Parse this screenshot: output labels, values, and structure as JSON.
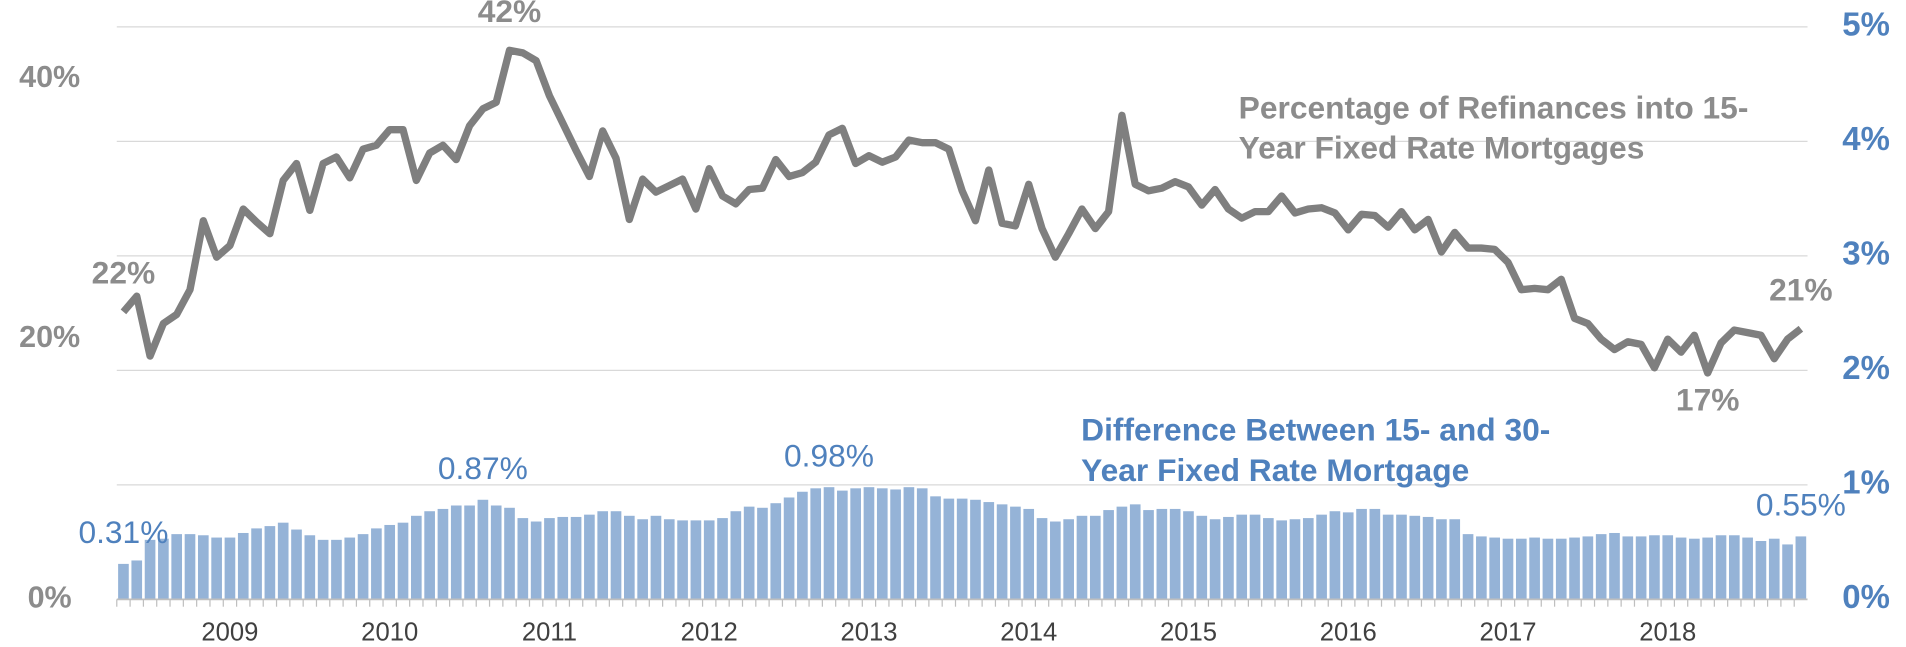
{
  "chart_data": {
    "type": "combo",
    "categories": [
      null,
      null,
      null,
      null,
      null,
      null,
      null,
      null,
      "2009",
      null,
      null,
      null,
      null,
      null,
      null,
      null,
      null,
      null,
      null,
      null,
      "2010",
      null,
      null,
      null,
      null,
      null,
      null,
      null,
      null,
      null,
      null,
      null,
      "2011",
      null,
      null,
      null,
      null,
      null,
      null,
      null,
      null,
      null,
      null,
      null,
      "2012",
      null,
      null,
      null,
      null,
      null,
      null,
      null,
      null,
      null,
      null,
      null,
      "2013",
      null,
      null,
      null,
      null,
      null,
      null,
      null,
      null,
      null,
      null,
      null,
      "2014",
      null,
      null,
      null,
      null,
      null,
      null,
      null,
      null,
      null,
      null,
      null,
      "2015",
      null,
      null,
      null,
      null,
      null,
      null,
      null,
      null,
      null,
      null,
      null,
      "2016",
      null,
      null,
      null,
      null,
      null,
      null,
      null,
      null,
      null,
      null,
      null,
      "2017",
      null,
      null,
      null,
      null,
      null,
      null,
      null,
      null,
      null,
      null,
      null,
      "2018",
      null,
      null,
      null,
      null,
      null,
      null,
      null,
      null,
      null,
      null
    ],
    "ylim": [
      0,
      44
    ],
    "yticks": [
      {
        "value": 0,
        "label": "0%"
      },
      {
        "value": 20,
        "label": "20%"
      },
      {
        "value": 40,
        "label": "40%"
      }
    ],
    "y2lim": [
      0,
      5
    ],
    "y2ticks": [
      {
        "value": 0,
        "label": "0%"
      },
      {
        "value": 1,
        "label": "1%"
      },
      {
        "value": 2,
        "label": "2%"
      },
      {
        "value": 3,
        "label": "3%"
      },
      {
        "value": 4,
        "label": "4%"
      },
      {
        "value": 5,
        "label": "5%"
      }
    ],
    "grid": true,
    "series": [
      {
        "name": "Percentage of Refinances into 15-Year Fixed Rate Mortgages",
        "type": "line",
        "axis": "y",
        "color": "#7f7f7f",
        "values": [
          22.1,
          23.3,
          18.7,
          21.2,
          21.9,
          23.8,
          29.1,
          26.3,
          27.2,
          30.0,
          29.0,
          28.1,
          32.2,
          33.5,
          29.9,
          33.5,
          34.0,
          32.4,
          34.6,
          34.9,
          36.1,
          36.1,
          32.2,
          34.3,
          34.9,
          33.8,
          36.4,
          37.7,
          38.2,
          42.2,
          42.0,
          41.4,
          38.7,
          36.6,
          34.5,
          32.5,
          36.0,
          33.9,
          29.2,
          32.3,
          31.3,
          31.8,
          32.3,
          30.0,
          33.1,
          31.0,
          30.4,
          31.5,
          31.6,
          33.8,
          32.5,
          32.8,
          33.6,
          35.7,
          36.2,
          33.5,
          34.1,
          33.6,
          34.0,
          35.3,
          35.1,
          35.1,
          34.6,
          31.4,
          29.1,
          33.0,
          28.9,
          28.7,
          31.9,
          28.5,
          26.3,
          28.1,
          30.0,
          28.5,
          29.8,
          37.2,
          31.9,
          31.4,
          31.6,
          32.1,
          31.7,
          30.3,
          31.5,
          30.0,
          29.3,
          29.8,
          29.8,
          31.0,
          29.7,
          30.0,
          30.1,
          29.7,
          28.4,
          29.6,
          29.5,
          28.6,
          29.8,
          28.4,
          29.2,
          26.7,
          28.2,
          27.0,
          27.0,
          26.9,
          25.9,
          23.8,
          23.9,
          23.8,
          24.6,
          21.6,
          21.2,
          20.0,
          19.2,
          19.8,
          19.6,
          17.8,
          20.0,
          19.0,
          20.3,
          17.4,
          19.7,
          20.7,
          20.5,
          20.3,
          18.5,
          20.0,
          20.8
        ],
        "value_labels": [
          "22%",
          null,
          null,
          null,
          null,
          null,
          null,
          null,
          null,
          null,
          null,
          null,
          null,
          null,
          null,
          null,
          null,
          null,
          null,
          null,
          null,
          null,
          null,
          null,
          null,
          null,
          null,
          null,
          null,
          "42%",
          null,
          null,
          null,
          null,
          null,
          null,
          null,
          null,
          null,
          null,
          null,
          null,
          null,
          null,
          null,
          null,
          null,
          null,
          null,
          null,
          null,
          null,
          null,
          null,
          null,
          null,
          null,
          null,
          null,
          null,
          null,
          null,
          null,
          null,
          null,
          null,
          null,
          null,
          null,
          null,
          null,
          null,
          null,
          null,
          null,
          null,
          null,
          null,
          null,
          null,
          null,
          null,
          null,
          null,
          null,
          null,
          null,
          null,
          null,
          null,
          null,
          null,
          null,
          null,
          null,
          null,
          null,
          null,
          null,
          null,
          null,
          null,
          null,
          null,
          null,
          null,
          null,
          null,
          null,
          null,
          null,
          null,
          null,
          null,
          null,
          null,
          null,
          null,
          null,
          "17%",
          null,
          null,
          null,
          null,
          null,
          null,
          "21%"
        ]
      },
      {
        "name": "Difference Between 15- and 30-Year Fixed Rate Mortgage",
        "type": "bar",
        "axis": "y2",
        "color": "#95b3d7",
        "values": [
          0.31,
          0.34,
          0.52,
          0.53,
          0.57,
          0.57,
          0.56,
          0.54,
          0.54,
          0.58,
          0.62,
          0.64,
          0.67,
          0.61,
          0.56,
          0.52,
          0.52,
          0.54,
          0.57,
          0.62,
          0.65,
          0.67,
          0.73,
          0.77,
          0.79,
          0.82,
          0.82,
          0.87,
          0.82,
          0.8,
          0.71,
          0.68,
          0.71,
          0.72,
          0.72,
          0.74,
          0.77,
          0.77,
          0.73,
          0.7,
          0.73,
          0.7,
          0.69,
          0.69,
          0.69,
          0.71,
          0.77,
          0.81,
          0.8,
          0.84,
          0.89,
          0.94,
          0.97,
          0.98,
          0.95,
          0.97,
          0.98,
          0.97,
          0.96,
          0.98,
          0.97,
          0.9,
          0.88,
          0.88,
          0.87,
          0.85,
          0.83,
          0.81,
          0.79,
          0.71,
          0.68,
          0.7,
          0.73,
          0.73,
          0.78,
          0.81,
          0.83,
          0.78,
          0.79,
          0.79,
          0.77,
          0.73,
          0.7,
          0.72,
          0.74,
          0.74,
          0.71,
          0.69,
          0.7,
          0.71,
          0.74,
          0.77,
          0.76,
          0.79,
          0.79,
          0.74,
          0.74,
          0.73,
          0.72,
          0.7,
          0.7,
          0.57,
          0.55,
          0.54,
          0.53,
          0.53,
          0.54,
          0.53,
          0.53,
          0.54,
          0.55,
          0.57,
          0.58,
          0.55,
          0.55,
          0.56,
          0.56,
          0.54,
          0.53,
          0.54,
          0.56,
          0.56,
          0.54,
          0.51,
          0.53,
          0.48,
          0.55
        ],
        "value_labels": [
          "0.31%",
          null,
          null,
          null,
          null,
          null,
          null,
          null,
          null,
          null,
          null,
          null,
          null,
          null,
          null,
          null,
          null,
          null,
          null,
          null,
          null,
          null,
          null,
          null,
          null,
          null,
          null,
          "0.87%",
          null,
          null,
          null,
          null,
          null,
          null,
          null,
          null,
          null,
          null,
          null,
          null,
          null,
          null,
          null,
          null,
          null,
          null,
          null,
          null,
          null,
          null,
          null,
          null,
          null,
          "0.98%",
          null,
          null,
          null,
          null,
          null,
          null,
          null,
          null,
          null,
          null,
          null,
          null,
          null,
          null,
          null,
          null,
          null,
          null,
          null,
          null,
          null,
          null,
          null,
          null,
          null,
          null,
          null,
          null,
          null,
          null,
          null,
          null,
          null,
          null,
          null,
          null,
          null,
          null,
          null,
          null,
          null,
          null,
          null,
          null,
          null,
          null,
          null,
          null,
          null,
          null,
          null,
          null,
          null,
          null,
          null,
          null,
          null,
          null,
          null,
          null,
          null,
          null,
          null,
          null,
          null,
          null,
          null,
          null,
          null,
          null,
          null,
          null,
          "0.55%"
        ]
      }
    ]
  }
}
